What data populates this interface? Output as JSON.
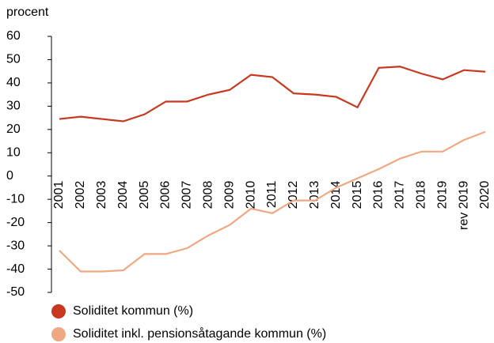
{
  "chart_data": {
    "type": "line",
    "y_label": "procent",
    "categories": [
      "2001",
      "2002",
      "2003",
      "2004",
      "2005",
      "2006",
      "2007",
      "2008",
      "2009",
      "2010",
      "2011",
      "2012",
      "2013",
      "2014",
      "2015",
      "2016",
      "2017",
      "2018",
      "2019",
      "rev 2019",
      "2020"
    ],
    "series": [
      {
        "name": "Soliditet kommun (%)",
        "color": "#c8381f",
        "values": [
          24.5,
          25.5,
          24.5,
          23.5,
          26.5,
          32,
          32,
          35,
          37,
          43.5,
          42.5,
          35.5,
          35,
          34,
          29.5,
          46.5,
          47,
          44,
          41.5,
          45.5,
          44.8
        ]
      },
      {
        "name": "Soliditet inkl. pensionsåtagande kommun (%)",
        "color": "#f0a882",
        "values": [
          -32,
          -41,
          -41,
          -40.5,
          -33.5,
          -33.5,
          -31,
          -25.5,
          -21,
          -14,
          -16,
          -10.5,
          -10.5,
          -5,
          -1,
          3,
          7.5,
          10.5,
          10.5,
          15.5,
          19
        ]
      }
    ],
    "ylim": [
      -50,
      60
    ],
    "yticks": [
      -50,
      -40,
      -30,
      -20,
      -10,
      0,
      10,
      20,
      30,
      40,
      50,
      60
    ],
    "negative_tick_color": "#c8381f"
  }
}
